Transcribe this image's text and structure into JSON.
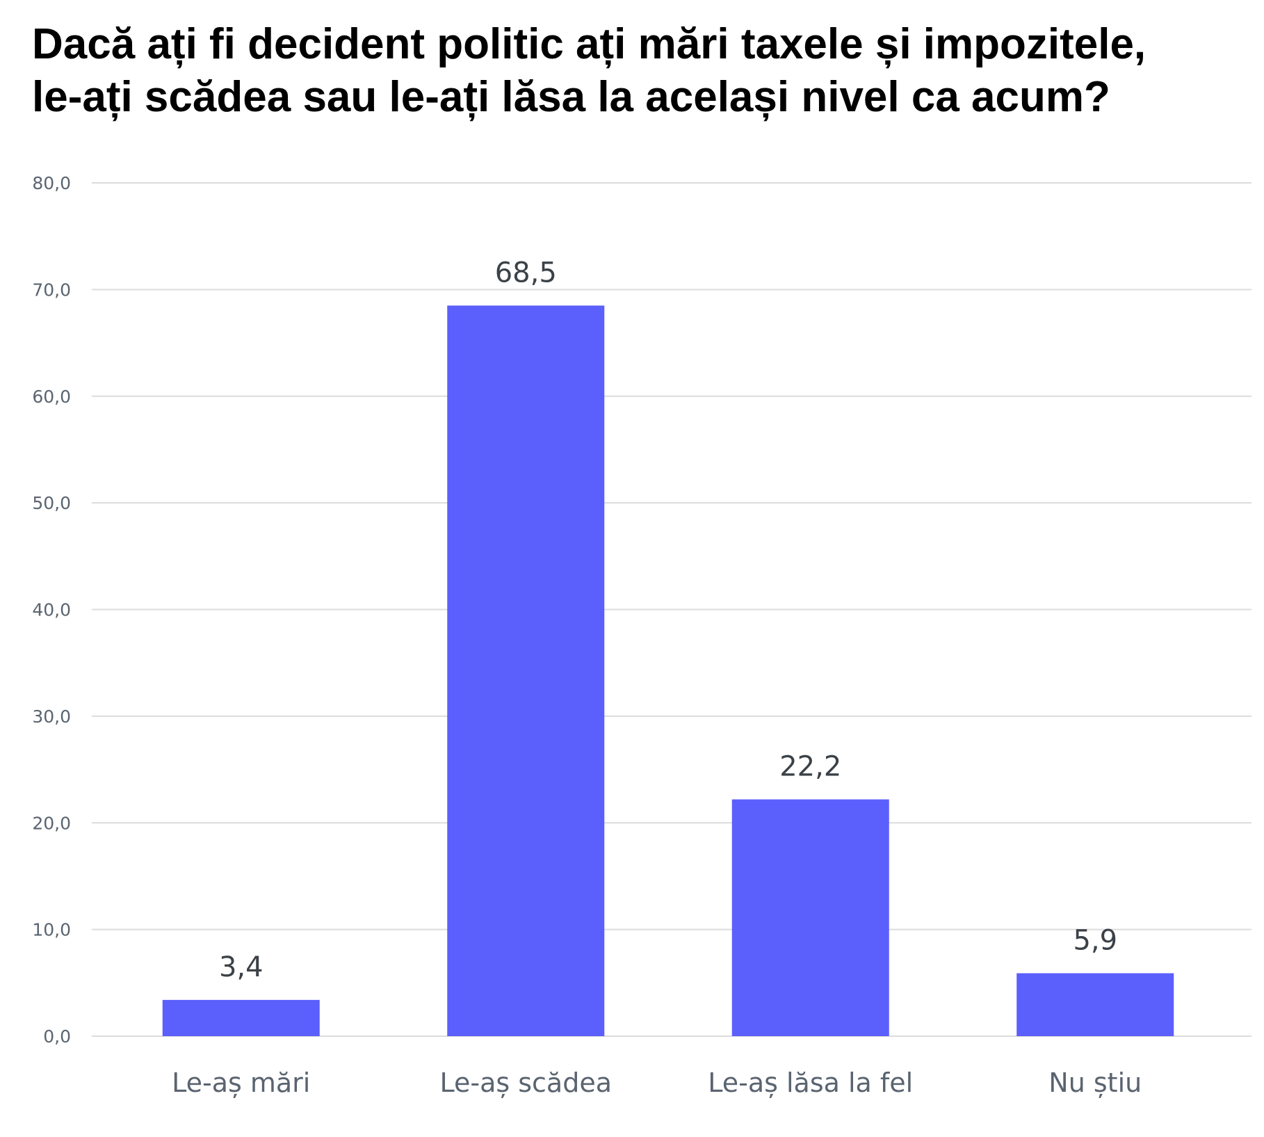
{
  "title": {
    "line1": "Dacă ați fi decident politic ați mări taxele și impozitele,",
    "line2": "le-ați scădea sau le-ați lăsa la același nivel ca acum?"
  },
  "chart_data": {
    "type": "bar",
    "categories": [
      "Le-aș mări",
      "Le-aș scădea",
      "Le-aș lăsa la fel",
      "Nu știu"
    ],
    "values": [
      3.4,
      68.5,
      22.2,
      5.9
    ],
    "value_labels": [
      "3,4",
      "68,5",
      "22,2",
      "5,9"
    ],
    "ylim": [
      0,
      80
    ],
    "yticks": [
      0,
      10,
      20,
      30,
      40,
      50,
      60,
      70,
      80
    ],
    "ytick_labels": [
      "0,0",
      "10,0",
      "20,0",
      "30,0",
      "40,0",
      "50,0",
      "60,0",
      "70,0",
      "80,0"
    ],
    "xlabel": "",
    "ylabel": "",
    "grid": true,
    "legend": "none",
    "bar_color": "#5b5ffb",
    "grid_color": "#dcdcdc"
  }
}
